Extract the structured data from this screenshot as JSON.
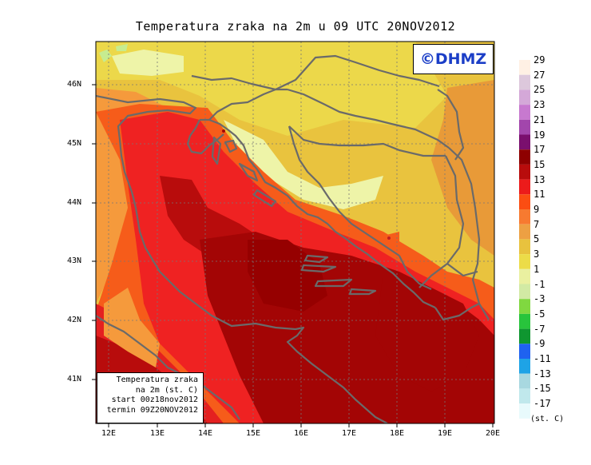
{
  "title": "Temperatura zraka na 2m u 09 UTC 20NOV2012",
  "brand": "©DHMZ",
  "infobox": {
    "line1": "Temperatura zraka",
    "line2": "na 2m (st. C)",
    "line3": "start 00z18nov2012",
    "line4": "termin 09Z20NOV2012"
  },
  "lat_labels": [
    "46N",
    "45N",
    "44N",
    "43N",
    "42N",
    "41N"
  ],
  "lon_labels": [
    "12E",
    "13E",
    "14E",
    "15E",
    "16E",
    "17E",
    "18E",
    "19E",
    "20E"
  ],
  "legend": {
    "unit": "(st. C)",
    "labels": [
      "29",
      "27",
      "25",
      "23",
      "21",
      "19",
      "17",
      "15",
      "13",
      "11",
      "9",
      "7",
      "5",
      "3",
      "1",
      "-1",
      "-3",
      "-5",
      "-7",
      "-9",
      "-11",
      "-13",
      "-15",
      "-17"
    ],
    "colors": [
      "#fff0e4",
      "#ddc8dc",
      "#d4a8d8",
      "#c779cf",
      "#a246ac",
      "#7a0f6e",
      "#8e0000",
      "#b80c0c",
      "#ec1b1b",
      "#fb4d12",
      "#f77a30",
      "#eda043",
      "#e8c23e",
      "#ecdc48",
      "#eaf0a0",
      "#d2eaa4",
      "#80d840",
      "#28c43c",
      "#0f9630",
      "#1f62f0",
      "#1ea3e6",
      "#a8d8e0",
      "#c0e8ec",
      "#e8fafc"
    ]
  },
  "map_colors": {
    "sea_warm": "#a30505",
    "sea_mid": "#c8181a",
    "coast_hot": "#ef2222",
    "orange": "#f65c1a",
    "light_orange": "#f59a3c",
    "yellow_orange": "#e9bc3c",
    "yellow": "#ecd84a",
    "pale_yellow": "#eef4a8",
    "light_green": "#c6ec90",
    "border": "#6a6a6a"
  }
}
